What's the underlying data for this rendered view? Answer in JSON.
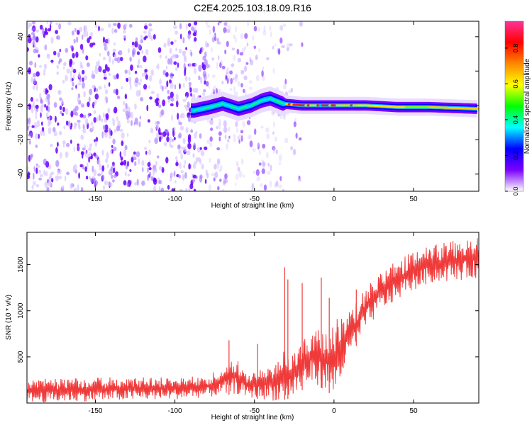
{
  "title": "C2E4.2025.103.18.09.R16",
  "colors": {
    "snr_line": "#f03a3a",
    "spec_background": "#ffffff",
    "axis": "#000000"
  },
  "chart_data": [
    {
      "type": "heatmap",
      "xlabel": "Height of straight line (km)",
      "ylabel": "Frequency (Hz)",
      "xlim": [
        -193,
        91
      ],
      "ylim": [
        -50,
        49
      ],
      "x_ticks": [
        -150,
        -100,
        -50,
        0,
        50
      ],
      "x_tick_labels": [
        "-150",
        "-100",
        "-50",
        "0",
        "50"
      ],
      "y_ticks": [
        -40,
        -20,
        0,
        20,
        40
      ],
      "y_tick_labels": [
        "-40",
        "-20",
        "0",
        "20",
        "40"
      ],
      "ridge": [
        {
          "x": -88,
          "y": -3
        },
        {
          "x": -78,
          "y": -1
        },
        {
          "x": -70,
          "y": 1
        },
        {
          "x": -60,
          "y": -2
        },
        {
          "x": -52,
          "y": 0
        },
        {
          "x": -45,
          "y": 3
        },
        {
          "x": -40,
          "y": 4
        },
        {
          "x": -32,
          "y": 1
        },
        {
          "x": -20,
          "y": 0
        },
        {
          "x": -10,
          "y": 0
        },
        {
          "x": 0,
          "y": 0
        },
        {
          "x": 20,
          "y": 0
        },
        {
          "x": 40,
          "y": -1
        },
        {
          "x": 60,
          "y": -1
        },
        {
          "x": 91,
          "y": -2
        }
      ],
      "noise_zone": {
        "x_from": -193,
        "x_to": -35
      },
      "colorbar": {
        "label": "Normalized spectral amplitude",
        "range": [
          0,
          0.95
        ],
        "ticks": [
          0,
          0.2,
          0.4,
          0.6,
          0.8
        ],
        "tick_labels": [
          "0.0",
          "0.2",
          "0.4",
          "0.6",
          "0.8"
        ],
        "stops": [
          "#ffffff",
          "#7a00ff",
          "#0000ff",
          "#00ffff",
          "#00ff00",
          "#ffff00",
          "#ff8800",
          "#ff0000",
          "#ff3399"
        ]
      }
    },
    {
      "type": "line",
      "xlabel": "Height of straight line (km)",
      "ylabel": "SNR (10 * v/v)",
      "xlim": [
        -193,
        91
      ],
      "ylim": [
        0,
        1850
      ],
      "x_ticks": [
        -150,
        -100,
        -50,
        0,
        50
      ],
      "x_tick_labels": [
        "-150",
        "-100",
        "-50",
        "0",
        "50"
      ],
      "y_ticks": [
        500,
        1000,
        1500
      ],
      "y_tick_labels": [
        "500",
        "1000",
        "1500"
      ],
      "series": [
        {
          "name": "SNR",
          "envelope": [
            {
              "x": -193,
              "low": 0,
              "high": 260
            },
            {
              "x": -150,
              "low": 20,
              "high": 280
            },
            {
              "x": -100,
              "low": 40,
              "high": 280
            },
            {
              "x": -80,
              "low": 60,
              "high": 300
            },
            {
              "x": -70,
              "low": 80,
              "high": 400
            },
            {
              "x": -62,
              "low": 100,
              "high": 500
            },
            {
              "x": -55,
              "low": 60,
              "high": 320
            },
            {
              "x": -45,
              "low": 40,
              "high": 380
            },
            {
              "x": -35,
              "low": 20,
              "high": 520
            },
            {
              "x": -25,
              "low": 60,
              "high": 640
            },
            {
              "x": -15,
              "low": 220,
              "high": 760
            },
            {
              "x": -5,
              "low": 140,
              "high": 860
            },
            {
              "x": 0,
              "low": 60,
              "high": 900
            },
            {
              "x": 10,
              "low": 500,
              "high": 1000
            },
            {
              "x": 20,
              "low": 800,
              "high": 1250
            },
            {
              "x": 30,
              "low": 1000,
              "high": 1450
            },
            {
              "x": 45,
              "low": 1180,
              "high": 1600
            },
            {
              "x": 60,
              "low": 1300,
              "high": 1700
            },
            {
              "x": 75,
              "low": 1320,
              "high": 1760
            },
            {
              "x": 91,
              "low": 1360,
              "high": 1800
            }
          ],
          "spikes": [
            {
              "x": -66,
              "y": 680
            },
            {
              "x": -48,
              "y": 640
            },
            {
              "x": -31,
              "y": 1470
            },
            {
              "x": -29,
              "y": 1340
            },
            {
              "x": -20,
              "y": 1300
            },
            {
              "x": -8,
              "y": 1360
            },
            {
              "x": -3,
              "y": 1140
            },
            {
              "x": 14,
              "y": 1230
            }
          ]
        }
      ]
    }
  ]
}
